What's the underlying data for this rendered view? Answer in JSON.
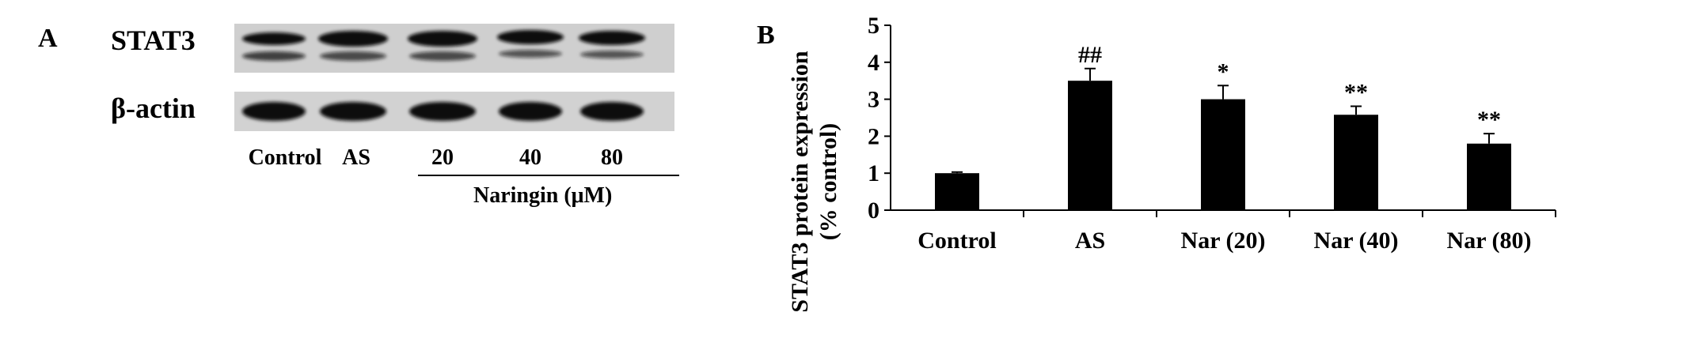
{
  "panel_a": {
    "letter": "A",
    "rows": [
      {
        "label": "STAT3"
      },
      {
        "label": "β-actin"
      }
    ],
    "lanes": [
      "Control",
      "AS",
      "20",
      "40",
      "80"
    ],
    "group_label": "Naringin (μM)",
    "blot_bg": "#cfcfcf",
    "band_color": "#111111"
  },
  "panel_b": {
    "letter": "B"
  },
  "chart_data": {
    "type": "bar",
    "title": "",
    "xlabel": "",
    "ylabel": "STAT3 protein expression",
    "ylabel_line2": "(% control)",
    "categories": [
      "Control",
      "AS",
      "Nar (20)",
      "Nar (40)",
      "Nar (80)"
    ],
    "values": [
      1.0,
      3.5,
      3.0,
      2.58,
      1.8
    ],
    "errors": [
      0.03,
      0.33,
      0.37,
      0.23,
      0.27
    ],
    "annotations": [
      "",
      "##",
      "*",
      "**",
      "**"
    ],
    "ylim": [
      0,
      5
    ],
    "yticks": [
      "0",
      "1",
      "2",
      "3",
      "4",
      "5"
    ],
    "grid": false,
    "bar_color": "#000000"
  }
}
